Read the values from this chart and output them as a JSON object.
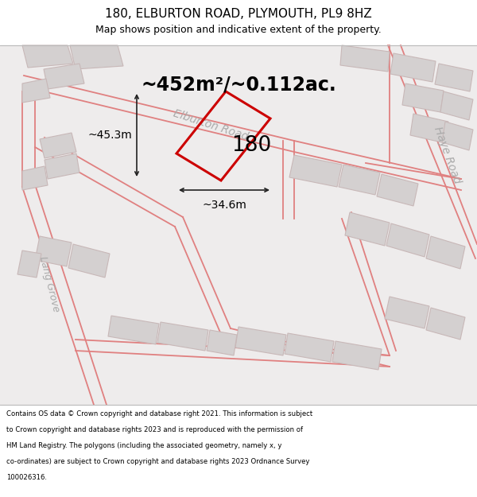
{
  "title_line1": "180, ELBURTON ROAD, PLYMOUTH, PL9 8HZ",
  "title_line2": "Map shows position and indicative extent of the property.",
  "area_text": "~452m²/~0.112ac.",
  "property_number": "180",
  "dim_width": "~34.6m",
  "dim_height": "~45.3m",
  "road_label_elburton": "Elburton Road",
  "road_label_haye": "Haye Road",
  "road_label_lang": "Lang Grove",
  "footer_lines": [
    "Contains OS data © Crown copyright and database right 2021. This information is subject",
    "to Crown copyright and database rights 2023 and is reproduced with the permission of",
    "HM Land Registry. The polygons (including the associated geometry, namely x, y",
    "co-ordinates) are subject to Crown copyright and database rights 2023 Ordnance Survey",
    "100026316."
  ],
  "map_bg": "#eeecec",
  "building_fill": "#d4d0d0",
  "building_edge": "#c8b8b8",
  "road_line_color": "#e08080",
  "property_line_color": "#cc0000",
  "dim_line_color": "#222222",
  "white": "#ffffff",
  "road_label_color": "#aaaaaa",
  "separator_color": "#bbbbbb"
}
